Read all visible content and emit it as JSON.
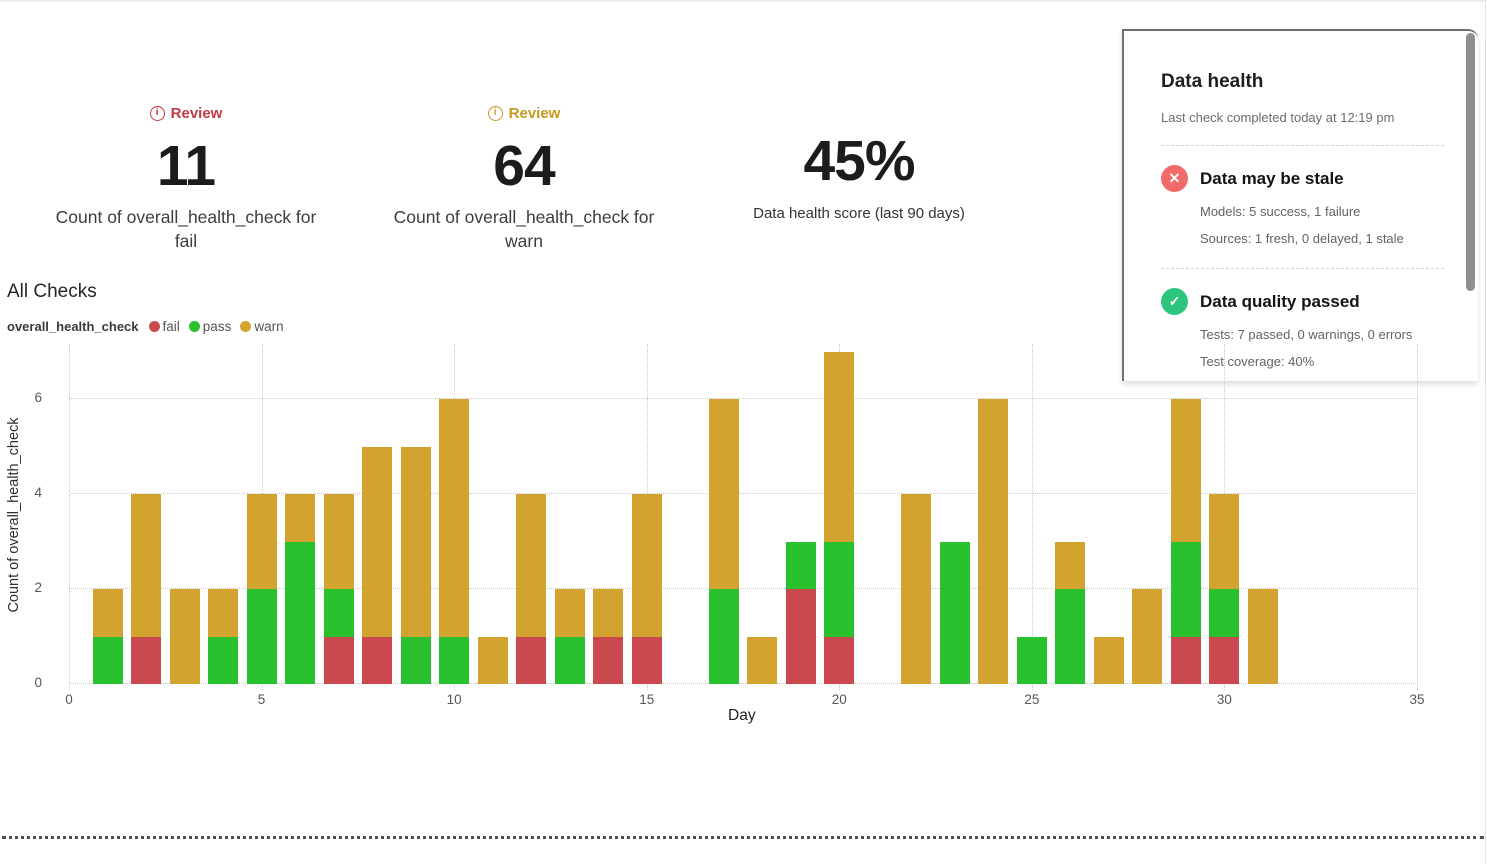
{
  "metrics": [
    {
      "review_label": "Review",
      "review_color": "#be3b42",
      "value": "11",
      "label": "Count of overall_health_check for fail"
    },
    {
      "review_label": "Review",
      "review_color": "#c7991c",
      "value": "64",
      "label": "Count of overall_health_check for warn"
    },
    {
      "value": "45%",
      "label": "Data health score (last 90 days)"
    }
  ],
  "health_panel": {
    "title": "Data health",
    "subtitle": "Last check completed today at 12:19 pm",
    "sections": [
      {
        "status": "fail",
        "icon_name": "x-circle-icon",
        "icon_glyph": "✕",
        "icon_color": "#f16b6b",
        "title": "Data may be stale",
        "lines": [
          "Models: 5 success, 1 failure",
          "Sources: 1 fresh, 0 delayed, 1 stale"
        ]
      },
      {
        "status": "pass",
        "icon_name": "check-circle-icon",
        "icon_glyph": "✓",
        "icon_color": "#2dc57e",
        "title": "Data quality passed",
        "lines": [
          "Tests: 7 passed, 0 warnings, 0 errors",
          "Test coverage: 40%"
        ]
      }
    ]
  },
  "chart_section": {
    "title": "All Checks",
    "legend_title": "overall_health_check",
    "legend": [
      {
        "label": "fail",
        "color": "#c9494e"
      },
      {
        "label": "pass",
        "color": "#29c22e"
      },
      {
        "label": "warn",
        "color": "#d2a42f"
      }
    ]
  },
  "chart_data": {
    "type": "bar",
    "stacked": true,
    "title": "All Checks",
    "xlabel": "Day",
    "ylabel": "Count of overall_health_check",
    "xlim": [
      0,
      35
    ],
    "ylim": [
      0,
      7
    ],
    "x_ticks": [
      0,
      5,
      10,
      15,
      20,
      25,
      30,
      35
    ],
    "y_ticks": [
      0,
      2,
      4,
      6
    ],
    "grid": "dotted",
    "legend_position": "top-left",
    "x": [
      1,
      2,
      3,
      4,
      5,
      6,
      7,
      8,
      9,
      10,
      11,
      12,
      13,
      14,
      15,
      16,
      17,
      18,
      19,
      20,
      21,
      22,
      23,
      24,
      25,
      26,
      27,
      28,
      29,
      30,
      31
    ],
    "series": [
      {
        "name": "fail",
        "color": "#c9494e",
        "values": [
          0,
          1,
          0,
          0,
          0,
          0,
          1,
          1,
          0,
          0,
          0,
          1,
          0,
          1,
          1,
          0,
          0,
          0,
          2,
          1,
          0,
          0,
          0,
          0,
          0,
          0,
          0,
          0,
          1,
          1,
          0
        ]
      },
      {
        "name": "pass",
        "color": "#29c22e",
        "values": [
          1,
          0,
          0,
          1,
          2,
          3,
          1,
          0,
          1,
          1,
          0,
          0,
          1,
          0,
          0,
          0,
          2,
          0,
          1,
          2,
          0,
          0,
          3,
          0,
          1,
          2,
          0,
          0,
          2,
          1,
          0
        ]
      },
      {
        "name": "warn",
        "color": "#d2a42f",
        "values": [
          1,
          3,
          2,
          1,
          2,
          1,
          2,
          4,
          4,
          5,
          1,
          3,
          1,
          1,
          3,
          0,
          4,
          1,
          0,
          4,
          0,
          4,
          0,
          6,
          0,
          1,
          1,
          2,
          3,
          2,
          2
        ]
      }
    ]
  }
}
